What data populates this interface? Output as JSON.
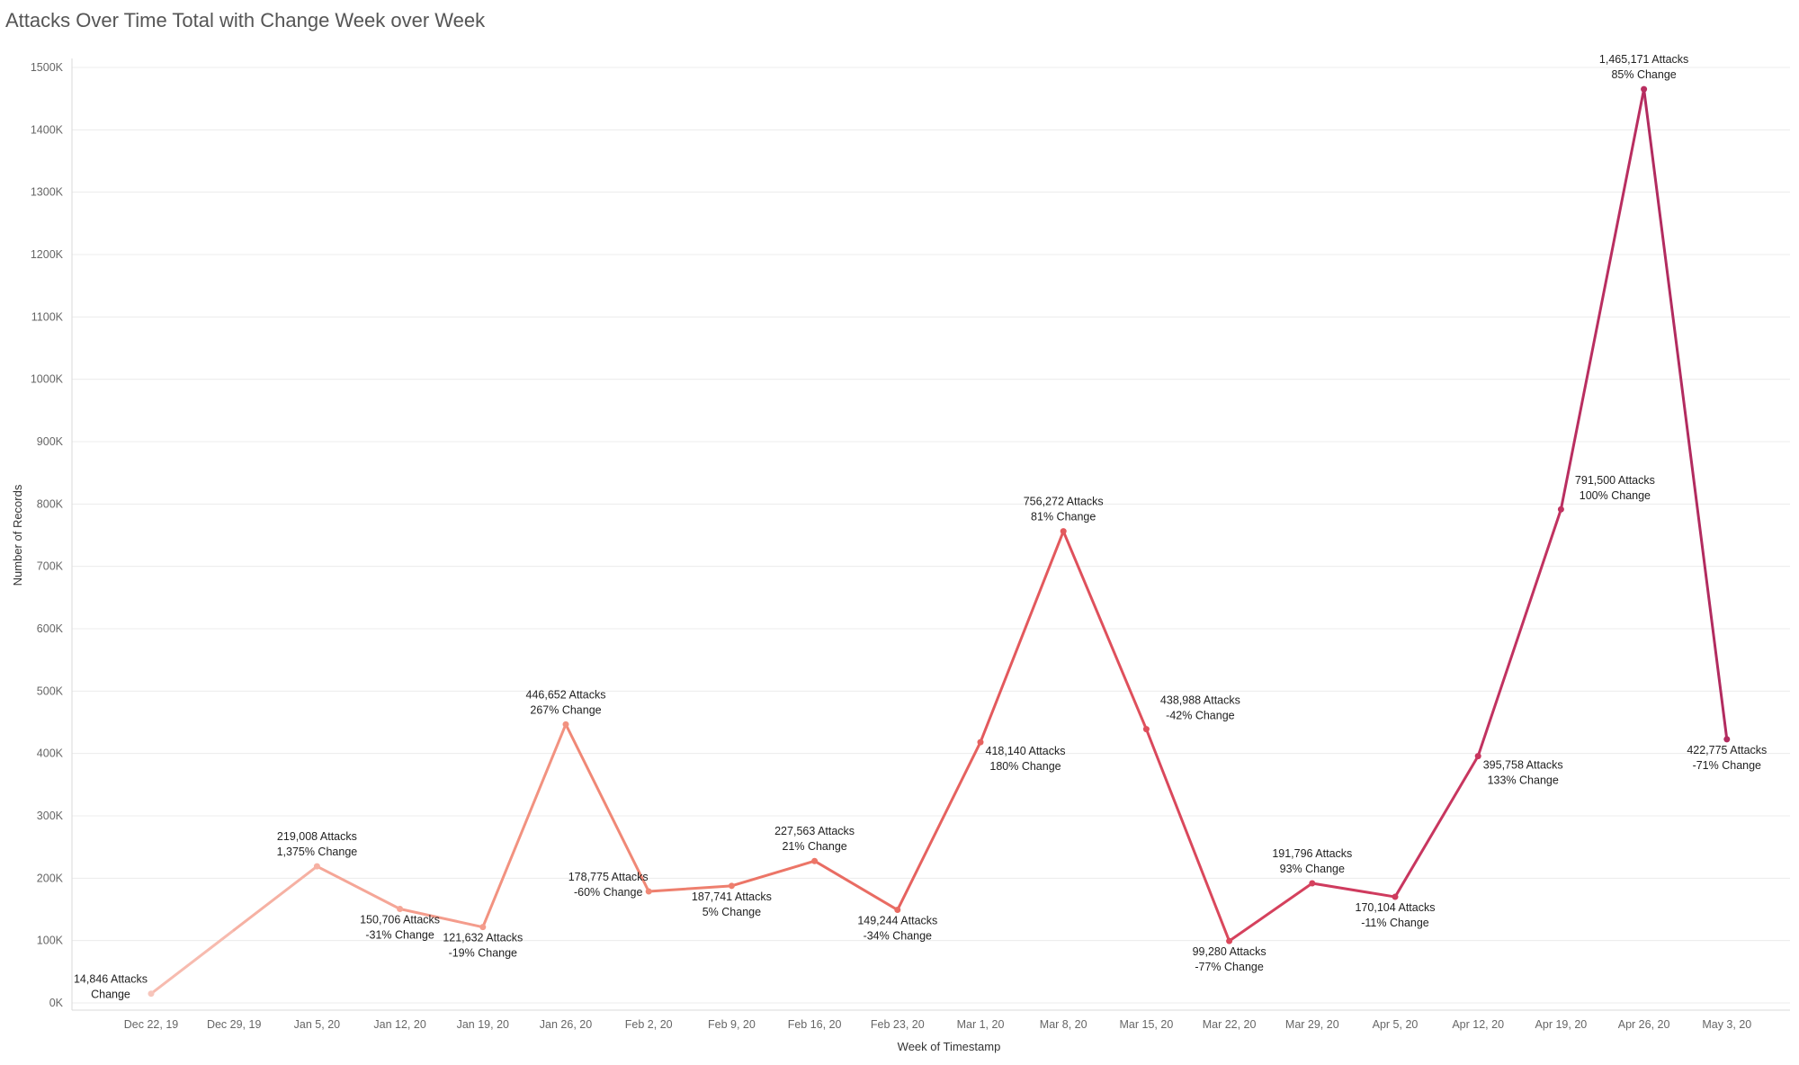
{
  "chart_data": {
    "type": "line",
    "title": "Attacks Over Time Total with Change Week over Week",
    "xlabel": "Week of Timestamp",
    "ylabel": "Number of Records",
    "ylim": [
      0,
      1500000
    ],
    "y_ticks": [
      0,
      100000,
      200000,
      300000,
      400000,
      500000,
      600000,
      700000,
      800000,
      900000,
      1000000,
      1100000,
      1200000,
      1300000,
      1400000,
      1500000
    ],
    "y_tick_labels": [
      "0K",
      "100K",
      "200K",
      "300K",
      "400K",
      "500K",
      "600K",
      "700K",
      "800K",
      "900K",
      "1000K",
      "1100K",
      "1200K",
      "1300K",
      "1400K",
      "1500K"
    ],
    "grid": true,
    "categories": [
      "Dec 22, 19",
      "Dec 29, 19",
      "Jan 5, 20",
      "Jan 12, 20",
      "Jan 19, 20",
      "Jan 26, 20",
      "Feb 2, 20",
      "Feb 9, 20",
      "Feb 16, 20",
      "Feb 23, 20",
      "Mar 1, 20",
      "Mar 8, 20",
      "Mar 15, 20",
      "Mar 22, 20",
      "Mar 29, 20",
      "Apr 5, 20",
      "Apr 12, 20",
      "Apr 19, 20",
      "Apr 26, 20",
      "May 3, 20"
    ],
    "values": [
      14846,
      null,
      219008,
      150706,
      121632,
      446652,
      178775,
      187741,
      227563,
      149244,
      418140,
      756272,
      438988,
      99280,
      191796,
      170104,
      395758,
      791500,
      1465171,
      422775
    ],
    "data_labels": [
      [
        "14,846 Attacks",
        "Change"
      ],
      null,
      [
        "219,008 Attacks",
        "1,375% Change"
      ],
      [
        "150,706 Attacks",
        "-31% Change"
      ],
      [
        "121,632 Attacks",
        "-19% Change"
      ],
      [
        "446,652 Attacks",
        "267% Change"
      ],
      [
        "178,775 Attacks",
        "-60% Change"
      ],
      [
        "187,741 Attacks",
        "5% Change"
      ],
      [
        "227,563 Attacks",
        "21% Change"
      ],
      [
        "149,244 Attacks",
        "-34% Change"
      ],
      [
        "418,140 Attacks",
        "180% Change"
      ],
      [
        "756,272 Attacks",
        "81% Change"
      ],
      [
        "438,988 Attacks",
        "-42% Change"
      ],
      [
        "99,280 Attacks",
        "-77% Change"
      ],
      [
        "191,796 Attacks",
        "93% Change"
      ],
      [
        "170,104 Attacks",
        "-11% Change"
      ],
      [
        "395,758 Attacks",
        "133% Change"
      ],
      [
        "791,500 Attacks",
        "100% Change"
      ],
      [
        "1,465,171 Attacks",
        "85% Change"
      ],
      [
        "422,775 Attacks",
        "-71% Change"
      ]
    ],
    "label_placement": [
      "left",
      null,
      "above",
      "below",
      "below",
      "above",
      "left",
      "below",
      "above",
      "below",
      "below-right",
      "above",
      "right",
      "below",
      "above",
      "below",
      "below-right",
      "right",
      "above",
      "below"
    ],
    "colors": [
      "#f7c5bb",
      "#f7bbaf",
      "#f6b1a3",
      "#f5a697",
      "#f49c8c",
      "#f29280",
      "#f08876",
      "#ee7f6e",
      "#ec7567",
      "#e96c63",
      "#e6625f",
      "#e3595d",
      "#df505c",
      "#da485c",
      "#d5415d",
      "#cf3b5e",
      "#c8365f",
      "#c13260",
      "#b92e60",
      "#b22b5f"
    ]
  }
}
